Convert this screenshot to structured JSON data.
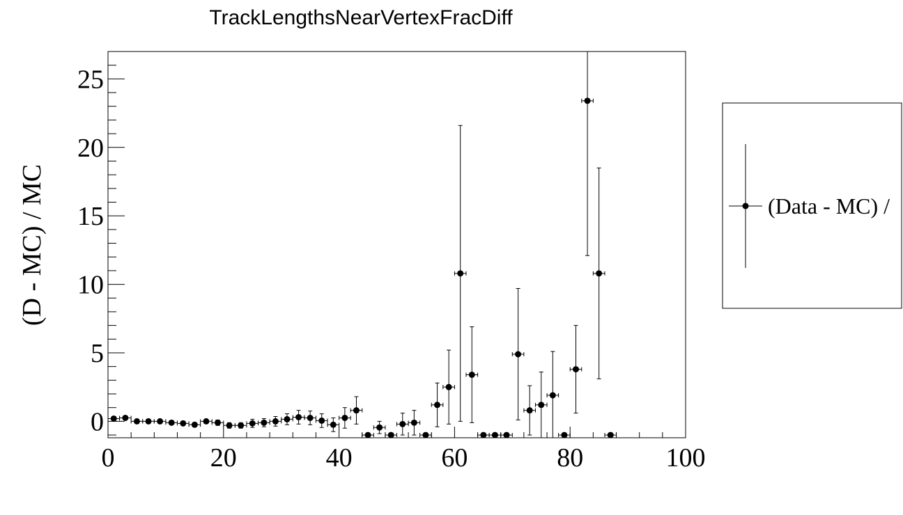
{
  "chart_data": {
    "type": "scatter",
    "title": "TrackLengthsNearVertexFracDiff",
    "xlabel": "",
    "ylabel": "(D - MC) / MC",
    "xlim": [
      0,
      100
    ],
    "ylim": [
      -1.2,
      27
    ],
    "x_ticks": [
      0,
      20,
      40,
      60,
      80,
      100
    ],
    "y_ticks": [
      0,
      5,
      10,
      15,
      20,
      25
    ],
    "grid": false,
    "legend_position": "right",
    "series": [
      {
        "name": "(Data - MC) /",
        "color": "#000000",
        "x_error": 1,
        "points": [
          {
            "x": 1,
            "y": 0.2,
            "err": 0.15
          },
          {
            "x": 3,
            "y": 0.25,
            "err": 0.15
          },
          {
            "x": 5,
            "y": 0.0,
            "err": 0.15
          },
          {
            "x": 7,
            "y": 0.0,
            "err": 0.15
          },
          {
            "x": 9,
            "y": 0.0,
            "err": 0.15
          },
          {
            "x": 11,
            "y": -0.1,
            "err": 0.15
          },
          {
            "x": 13,
            "y": -0.15,
            "err": 0.15
          },
          {
            "x": 15,
            "y": -0.25,
            "err": 0.15
          },
          {
            "x": 17,
            "y": 0.0,
            "err": 0.15
          },
          {
            "x": 19,
            "y": -0.1,
            "err": 0.2
          },
          {
            "x": 21,
            "y": -0.3,
            "err": 0.2
          },
          {
            "x": 23,
            "y": -0.3,
            "err": 0.2
          },
          {
            "x": 25,
            "y": -0.15,
            "err": 0.3
          },
          {
            "x": 27,
            "y": -0.1,
            "err": 0.3
          },
          {
            "x": 29,
            "y": 0.0,
            "err": 0.35
          },
          {
            "x": 31,
            "y": 0.15,
            "err": 0.4
          },
          {
            "x": 33,
            "y": 0.3,
            "err": 0.5
          },
          {
            "x": 35,
            "y": 0.25,
            "err": 0.5
          },
          {
            "x": 37,
            "y": 0.05,
            "err": 0.5
          },
          {
            "x": 39,
            "y": -0.25,
            "err": 0.5
          },
          {
            "x": 41,
            "y": 0.25,
            "err": 0.75
          },
          {
            "x": 43,
            "y": 0.8,
            "err": 1.0
          },
          {
            "x": 45,
            "y": -1.0,
            "err": 0.0
          },
          {
            "x": 47,
            "y": -0.45,
            "err": 0.45
          },
          {
            "x": 49,
            "y": -1.0,
            "err": 0.0
          },
          {
            "x": 51,
            "y": -0.2,
            "err": 0.8
          },
          {
            "x": 53,
            "y": -0.1,
            "err": 0.9
          },
          {
            "x": 55,
            "y": -1.0,
            "err": 0.0
          },
          {
            "x": 57,
            "y": 1.2,
            "err": 1.6
          },
          {
            "x": 59,
            "y": 2.5,
            "err": 2.7
          },
          {
            "x": 61,
            "y": 10.8,
            "err": 10.8
          },
          {
            "x": 63,
            "y": 3.4,
            "err": 3.5
          },
          {
            "x": 65,
            "y": -1.0,
            "err": 0.0
          },
          {
            "x": 67,
            "y": -1.0,
            "err": 0.0
          },
          {
            "x": 69,
            "y": -1.0,
            "err": 0.0
          },
          {
            "x": 71,
            "y": 4.9,
            "err": 4.8
          },
          {
            "x": 73,
            "y": 0.8,
            "err": 1.8
          },
          {
            "x": 75,
            "y": 1.2,
            "err": 2.4
          },
          {
            "x": 77,
            "y": 1.9,
            "err": 3.2
          },
          {
            "x": 79,
            "y": -1.0,
            "err": 0.0
          },
          {
            "x": 81,
            "y": 3.8,
            "err": 3.2
          },
          {
            "x": 83,
            "y": 23.4,
            "err": 11.3
          },
          {
            "x": 85,
            "y": 10.8,
            "err": 7.7
          },
          {
            "x": 87,
            "y": -1.0,
            "err": 0.0
          }
        ]
      }
    ]
  }
}
